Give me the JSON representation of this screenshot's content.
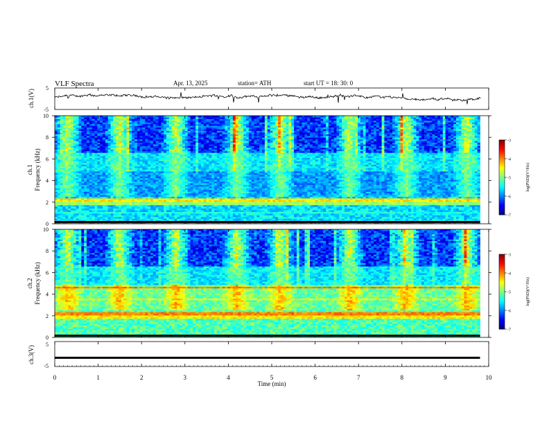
{
  "header": {
    "title": "VLF  Spectra",
    "date": "Apr. 13, 2025",
    "station": "station= ATH",
    "start": "start  UT  =    18: 30: 0"
  },
  "xaxis": {
    "label": "Time  (min)",
    "ticks": [
      "0",
      "1",
      "2",
      "3",
      "4",
      "5",
      "6",
      "7",
      "8",
      "9",
      "10"
    ]
  },
  "ch1_wave": {
    "ylabel": "ch.1(V)",
    "ticks": [
      "5",
      "-5"
    ]
  },
  "spec1": {
    "ylabel_top": "ch.1",
    "ylabel": "Frequency  (kHz)",
    "ticks": [
      "10",
      "8",
      "6",
      "4",
      "2",
      "0"
    ],
    "colorbar": {
      "label": "log(PSD)(V²/Hz)",
      "ticks": [
        "-3",
        "-4",
        "-5",
        "-6",
        "-7"
      ]
    }
  },
  "spec2": {
    "ylabel_top": "ch.2",
    "ylabel": "Frequency  (kHz)",
    "ticks": [
      "10",
      "8",
      "6",
      "4",
      "2",
      "0"
    ],
    "colorbar": {
      "label": "log(PSD)(V²/Hz)",
      "ticks": [
        "-3",
        "-4",
        "-5",
        "-6",
        "-7"
      ]
    }
  },
  "ch3_wave": {
    "ylabel": "ch.3(V)",
    "ticks": [
      "5",
      "-5"
    ]
  },
  "chart_data": [
    {
      "type": "line",
      "title": "ch.1(V)",
      "ylim": [
        -5,
        5
      ],
      "xlim": [
        0,
        10
      ],
      "x_unit": "min",
      "approx_level": 0.5
    },
    {
      "type": "heatmap",
      "title": "ch.1",
      "ylabel": "Frequency  (kHz)",
      "ylim": [
        0,
        10
      ],
      "xlim": [
        0,
        9.8
      ],
      "clim": [
        -7,
        -3
      ],
      "bursts_min": [
        0.3,
        1.5,
        2.8,
        4.2,
        5.2,
        6.8,
        8.1,
        9.5
      ],
      "bands_khz": [
        {
          "f": 2.2,
          "level": -4.4
        },
        {
          "f": 1.9,
          "level": -4.9
        },
        {
          "f": 1.0,
          "level": -5.4
        },
        {
          "f": 0.6,
          "level": -6.2
        }
      ]
    },
    {
      "type": "heatmap",
      "title": "ch.2",
      "ylabel": "Frequency  (kHz)",
      "ylim": [
        0,
        10
      ],
      "xlim": [
        0,
        9.8
      ],
      "clim": [
        -7,
        -3
      ],
      "bursts_min": [
        0.3,
        1.5,
        2.8,
        4.2,
        5.2,
        6.8,
        8.1,
        9.5
      ],
      "bands_khz": [
        {
          "f": 4.6,
          "level": -4.0
        },
        {
          "f": 3.5,
          "level": -4.5
        },
        {
          "f": 2.2,
          "level": -4.0
        },
        {
          "f": 1.9,
          "level": -4.4
        }
      ]
    },
    {
      "type": "line",
      "title": "ch.3(V)",
      "ylim": [
        -5,
        5
      ],
      "xlim": [
        0,
        10
      ],
      "x_unit": "min",
      "level": -1.5
    }
  ]
}
